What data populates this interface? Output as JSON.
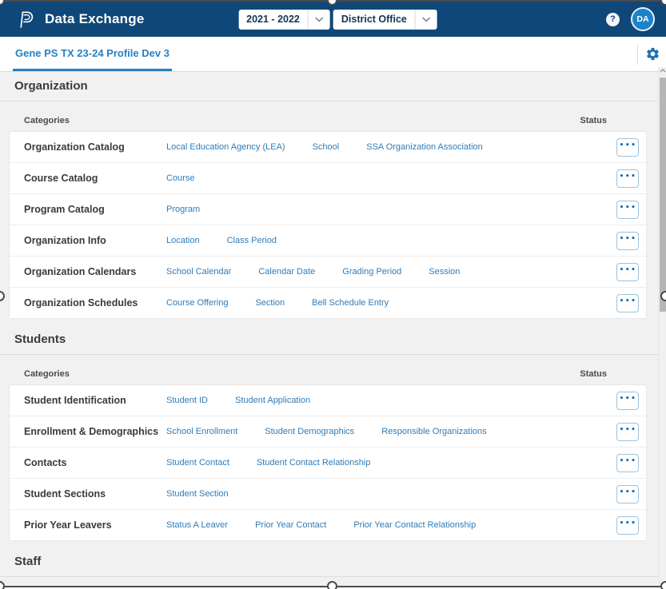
{
  "colors": {
    "header_bg": "#0F4778",
    "accent_blue": "#2880C3",
    "link_blue": "#2E7CB9",
    "avatar_bg": "#1D83C9",
    "gear_blue": "#1B6FB5"
  },
  "header": {
    "app_title": "Data Exchange",
    "year_value": "2021 - 2022",
    "office_value": "District Office",
    "help_glyph": "?",
    "avatar_initials": "DA"
  },
  "tabs": {
    "active": "Gene PS TX 23-24 Profile Dev 3"
  },
  "table": {
    "categories_header": "Categories",
    "status_header": "Status",
    "actions_glyph": "•••"
  },
  "sections": [
    {
      "title": "Organization",
      "rows": [
        {
          "label": "Organization Catalog",
          "links": [
            "Local Education Agency (LEA)",
            "School",
            "SSA Organization Association"
          ]
        },
        {
          "label": "Course Catalog",
          "links": [
            "Course"
          ]
        },
        {
          "label": "Program Catalog",
          "links": [
            "Program"
          ]
        },
        {
          "label": "Organization Info",
          "links": [
            "Location",
            "Class Period"
          ]
        },
        {
          "label": "Organization Calendars",
          "links": [
            "School Calendar",
            "Calendar Date",
            "Grading Period",
            "Session"
          ]
        },
        {
          "label": "Organization Schedules",
          "links": [
            "Course Offering",
            "Section",
            "Bell Schedule Entry"
          ]
        }
      ]
    },
    {
      "title": "Students",
      "rows": [
        {
          "label": "Student Identification",
          "links": [
            "Student ID",
            "Student Application"
          ]
        },
        {
          "label": "Enrollment & Demographics",
          "links": [
            "School Enrollment",
            "Student Demographics",
            "Responsible Organizations"
          ]
        },
        {
          "label": "Contacts",
          "links": [
            "Student Contact",
            "Student Contact Relationship"
          ]
        },
        {
          "label": "Student Sections",
          "links": [
            "Student Section"
          ]
        },
        {
          "label": "Prior Year Leavers",
          "links": [
            "Status A Leaver",
            "Prior Year Contact",
            "Prior Year Contact Relationship"
          ]
        }
      ]
    },
    {
      "title": "Staff",
      "rows": []
    }
  ]
}
